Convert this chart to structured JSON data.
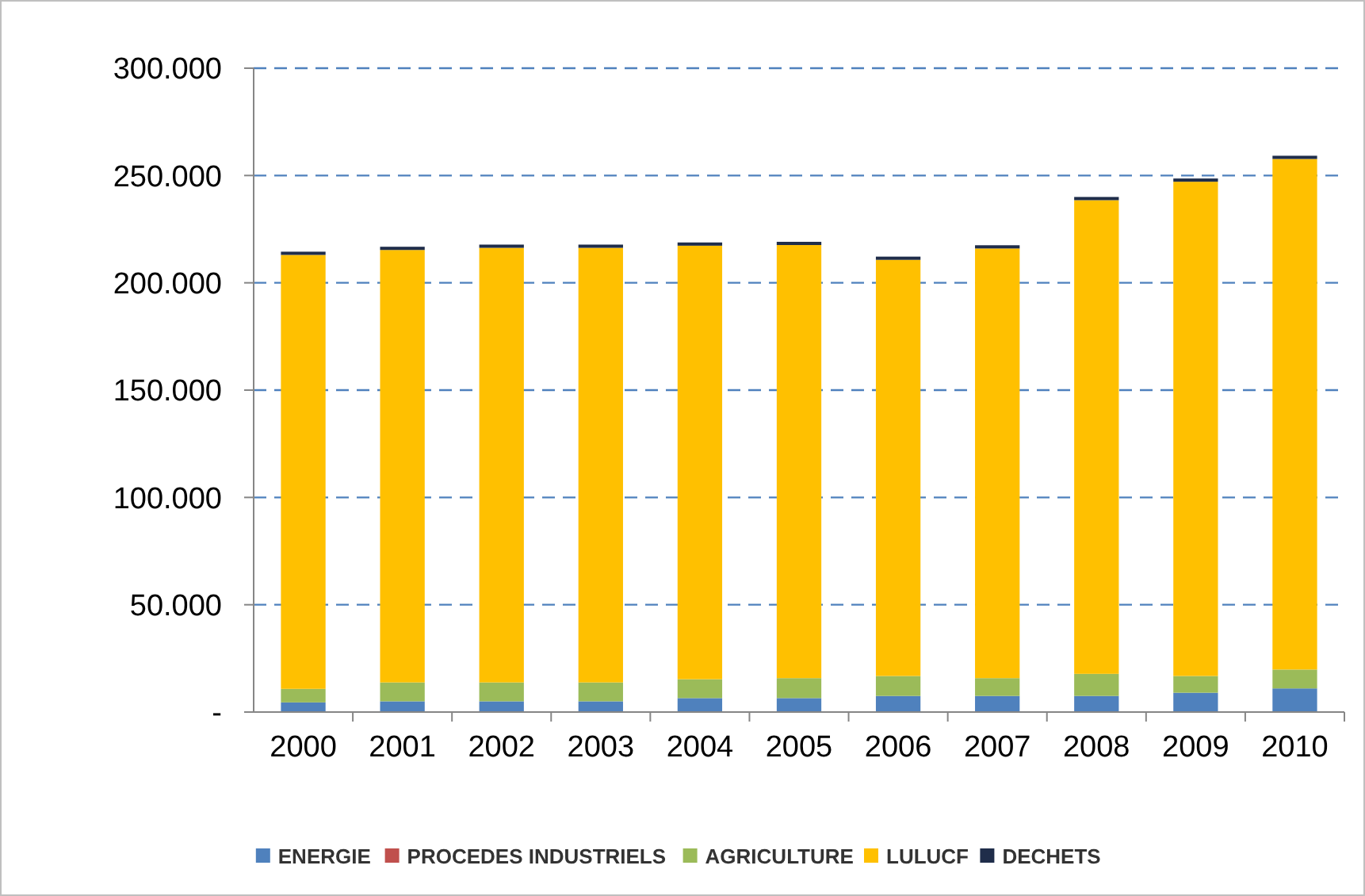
{
  "chart_data": {
    "type": "bar",
    "stacked": true,
    "categories": [
      "2000",
      "2001",
      "2002",
      "2003",
      "2004",
      "2005",
      "2006",
      "2007",
      "2008",
      "2009",
      "2010"
    ],
    "series": [
      {
        "name": "ENERGIE",
        "color": "#4f81bd",
        "values": [
          4500,
          5000,
          5000,
          5000,
          6500,
          6500,
          7500,
          7500,
          7500,
          9000,
          11000
        ]
      },
      {
        "name": "PROCEDES INDUSTRIELS",
        "color": "#c0504d",
        "values": [
          null,
          null,
          null,
          null,
          null,
          null,
          null,
          null,
          null,
          null,
          null
        ]
      },
      {
        "name": "AGRICULTURE",
        "color": "#9bbb59",
        "values": [
          6300,
          8800,
          8800,
          8800,
          8800,
          9300,
          9300,
          8300,
          10300,
          7800,
          8800
        ]
      },
      {
        "name": "LULUCF",
        "color": "#ffc000",
        "values": [
          202200,
          201500,
          202500,
          202500,
          202000,
          201800,
          193900,
          200200,
          220700,
          230300,
          237900
        ]
      },
      {
        "name": "DECHETS",
        "color": "#1f2d4a",
        "values": [
          1500,
          1500,
          1500,
          1500,
          1500,
          1500,
          1500,
          1500,
          1500,
          1500,
          1500
        ]
      }
    ],
    "ylim": [
      0,
      300000
    ],
    "yticks": [
      {
        "value": 0,
        "label": "-"
      },
      {
        "value": 50000,
        "label": "50.000"
      },
      {
        "value": 100000,
        "label": "100.000"
      },
      {
        "value": 150000,
        "label": "150.000"
      },
      {
        "value": 200000,
        "label": "200.000"
      },
      {
        "value": 250000,
        "label": "250.000"
      },
      {
        "value": 300000,
        "label": "300.000"
      }
    ],
    "grid": "y",
    "legend": "bottom"
  }
}
